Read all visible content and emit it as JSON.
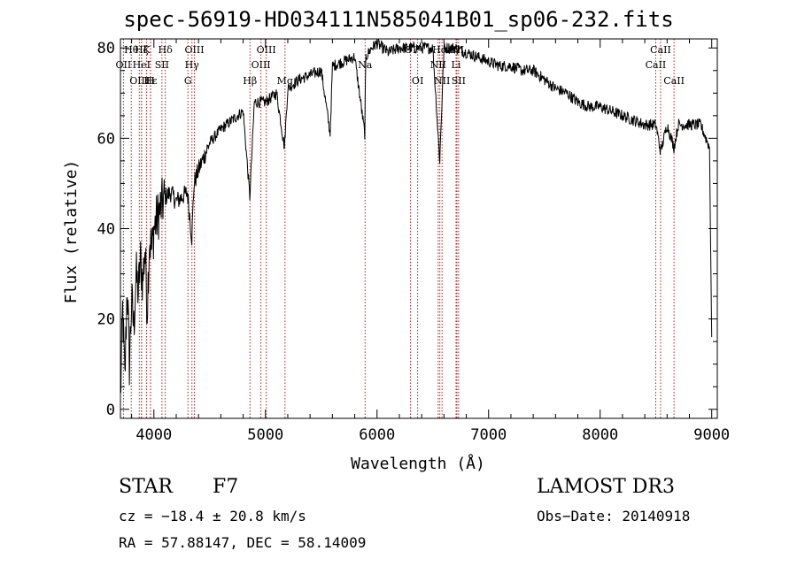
{
  "chart_data": {
    "type": "line",
    "title": "spec-56919-HD034111N585041B01_sp06-232.fits",
    "xlabel": "Wavelength (Å)",
    "ylabel": "Flux (relative)",
    "xlim": [
      3700,
      9050
    ],
    "ylim": [
      -2,
      82
    ],
    "xticks": [
      4000,
      5000,
      6000,
      7000,
      8000,
      9000
    ],
    "yticks": [
      0,
      20,
      40,
      60,
      80
    ],
    "series": [
      {
        "name": "spectrum",
        "x": [
          3700,
          3720,
          3740,
          3760,
          3780,
          3800,
          3820,
          3840,
          3860,
          3880,
          3900,
          3920,
          3940,
          3960,
          3980,
          4000,
          4050,
          4100,
          4150,
          4200,
          4250,
          4300,
          4340,
          4360,
          4400,
          4450,
          4500,
          4600,
          4700,
          4800,
          4860,
          4900,
          5000,
          5100,
          5170,
          5200,
          5300,
          5400,
          5500,
          5580,
          5600,
          5700,
          5800,
          5890,
          5900,
          5950,
          6000,
          6050,
          6100,
          6200,
          6300,
          6400,
          6500,
          6562,
          6600,
          6700,
          6800,
          6900,
          7000,
          7100,
          7200,
          7300,
          7400,
          7500,
          7600,
          7700,
          7800,
          7900,
          8000,
          8100,
          8200,
          8300,
          8400,
          8500,
          8542,
          8600,
          8662,
          8700,
          8800,
          8900,
          8980,
          9000
        ],
        "y": [
          2,
          22,
          6,
          28,
          10,
          24,
          18,
          30,
          26,
          33,
          28,
          36,
          22,
          38,
          35,
          40,
          44,
          47,
          48,
          46,
          47,
          48,
          38,
          50,
          53,
          56,
          59,
          62,
          64,
          66,
          47,
          68,
          68,
          70,
          58,
          71,
          73,
          74,
          75,
          61,
          76,
          77,
          78,
          61,
          78,
          80,
          81,
          80,
          79,
          80,
          80,
          80,
          80,
          55,
          80,
          80,
          79,
          78,
          77,
          76,
          76,
          75,
          75,
          73,
          71,
          70,
          68,
          67,
          67,
          66,
          65,
          64,
          63,
          63,
          57,
          63,
          58,
          63,
          63,
          63,
          58,
          16
        ]
      }
    ],
    "spectral_lines": [
      {
        "label": "Hθ",
        "x": 3797,
        "row": 1
      },
      {
        "label": "OII",
        "x": 3727,
        "row": 2
      },
      {
        "label": "OIII",
        "x": 3869,
        "row": 3
      },
      {
        "label": "Hζ",
        "x": 3889,
        "row": 1
      },
      {
        "label": "HeI",
        "x": 3889,
        "row": 2
      },
      {
        "label": "Hε",
        "x": 3970,
        "row": 3
      },
      {
        "label": "K",
        "x": 3934,
        "row": 1
      },
      {
        "label": "SII",
        "x": 4072,
        "row": 2
      },
      {
        "label": "H",
        "x": 3969,
        "row": 3
      },
      {
        "label": "Hδ",
        "x": 4102,
        "row": 1
      },
      {
        "label": "OIII",
        "x": 4363,
        "row": 1
      },
      {
        "label": "Hγ",
        "x": 4341,
        "row": 2
      },
      {
        "label": "G",
        "x": 4305,
        "row": 3
      },
      {
        "label": "Hβ",
        "x": 4861,
        "row": 3
      },
      {
        "label": "OIII",
        "x": 5007,
        "row": 1
      },
      {
        "label": "OIII",
        "x": 4959,
        "row": 2
      },
      {
        "label": "Mg",
        "x": 5175,
        "row": 3
      },
      {
        "label": "Na",
        "x": 5893,
        "row": 2
      },
      {
        "label": "OI",
        "x": 6300,
        "row": 1
      },
      {
        "label": "OI",
        "x": 6364,
        "row": 3
      },
      {
        "label": "Hα",
        "x": 6563,
        "row": 1
      },
      {
        "label": "NII",
        "x": 6548,
        "row": 2
      },
      {
        "label": "NII",
        "x": 6583,
        "row": 3
      },
      {
        "label": "SII",
        "x": 6716,
        "row": 1
      },
      {
        "label": "Li",
        "x": 6708,
        "row": 2
      },
      {
        "label": "SII",
        "x": 6731,
        "row": 3
      },
      {
        "label": "CaII",
        "x": 8542,
        "row": 1
      },
      {
        "label": "CaII",
        "x": 8498,
        "row": 2
      },
      {
        "label": "CaII",
        "x": 8662,
        "row": 3
      }
    ]
  },
  "info": {
    "object_class": "STAR",
    "subclass": "F7",
    "survey": "LAMOST DR3",
    "redshift": "cz = −18.4 ± 20.8 km/s",
    "obs_date": "Obs−Date: 20140918",
    "coords": "RA =  57.88147, DEC =  58.14009"
  }
}
